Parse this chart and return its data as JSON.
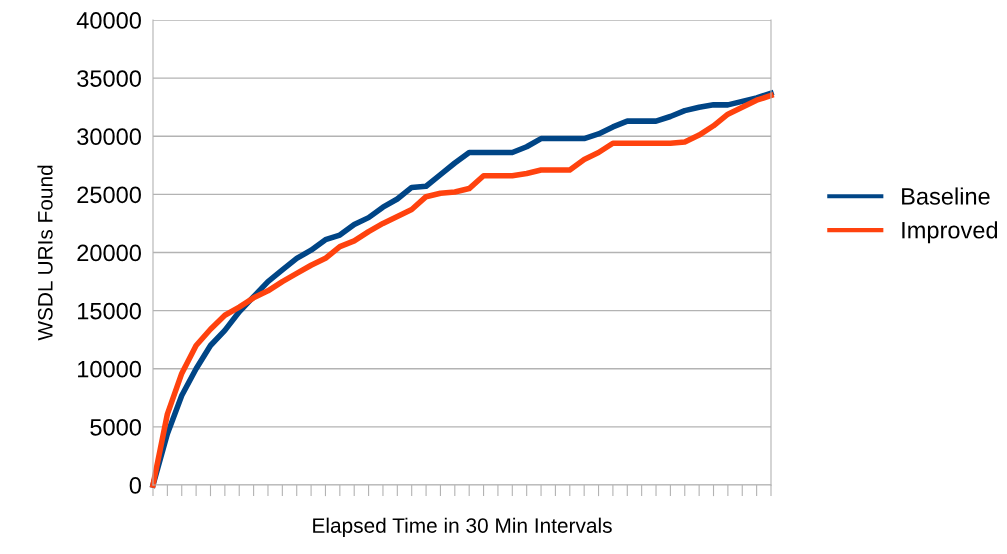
{
  "chart_data": {
    "type": "line",
    "xlabel": "Elapsed Time in 30 Min Intervals",
    "ylabel": "WSDL URIs Found",
    "categories": [
      null,
      null,
      null,
      null,
      null,
      null,
      null,
      null,
      null,
      null,
      null,
      null,
      null,
      null,
      null,
      null,
      null,
      null,
      null,
      null,
      null,
      null,
      null,
      null,
      null,
      null,
      null,
      null,
      null,
      null,
      null,
      null,
      null,
      null,
      null,
      null,
      null,
      null,
      null,
      null,
      null,
      null,
      null,
      null
    ],
    "series": [
      {
        "name": "Baseline",
        "color": "#004586",
        "values": [
          0,
          4400,
          7700,
          10000,
          12000,
          13300,
          14900,
          16200,
          17500,
          18500,
          19500,
          20200,
          21100,
          21500,
          22400,
          23000,
          23900,
          24600,
          25600,
          25700,
          26700,
          27700,
          28600,
          28600,
          28600,
          28600,
          29100,
          29800,
          29800,
          29800,
          29800,
          30200,
          30800,
          31300,
          31300,
          31300,
          31700,
          32200,
          32500,
          32700,
          32700,
          33000,
          33300,
          33700
        ]
      },
      {
        "name": "Improved",
        "color": "#ff420e",
        "values": [
          0,
          6100,
          9600,
          12000,
          13400,
          14600,
          15300,
          16100,
          16700,
          17500,
          18200,
          18900,
          19500,
          20500,
          21000,
          21800,
          22500,
          23100,
          23700,
          24800,
          25100,
          25200,
          25500,
          26600,
          26600,
          26600,
          26800,
          27100,
          27100,
          27100,
          28000,
          28600,
          29400,
          29400,
          29400,
          29400,
          29400,
          29500,
          30100,
          30900,
          31900,
          32500,
          33100,
          33500
        ]
      }
    ],
    "ylim": [
      0,
      40000
    ],
    "yticks": [
      0,
      5000,
      10000,
      15000,
      20000,
      25000,
      30000,
      35000,
      40000
    ],
    "grid": "y",
    "legend": "right",
    "marker": "none",
    "line_style": "solid"
  }
}
